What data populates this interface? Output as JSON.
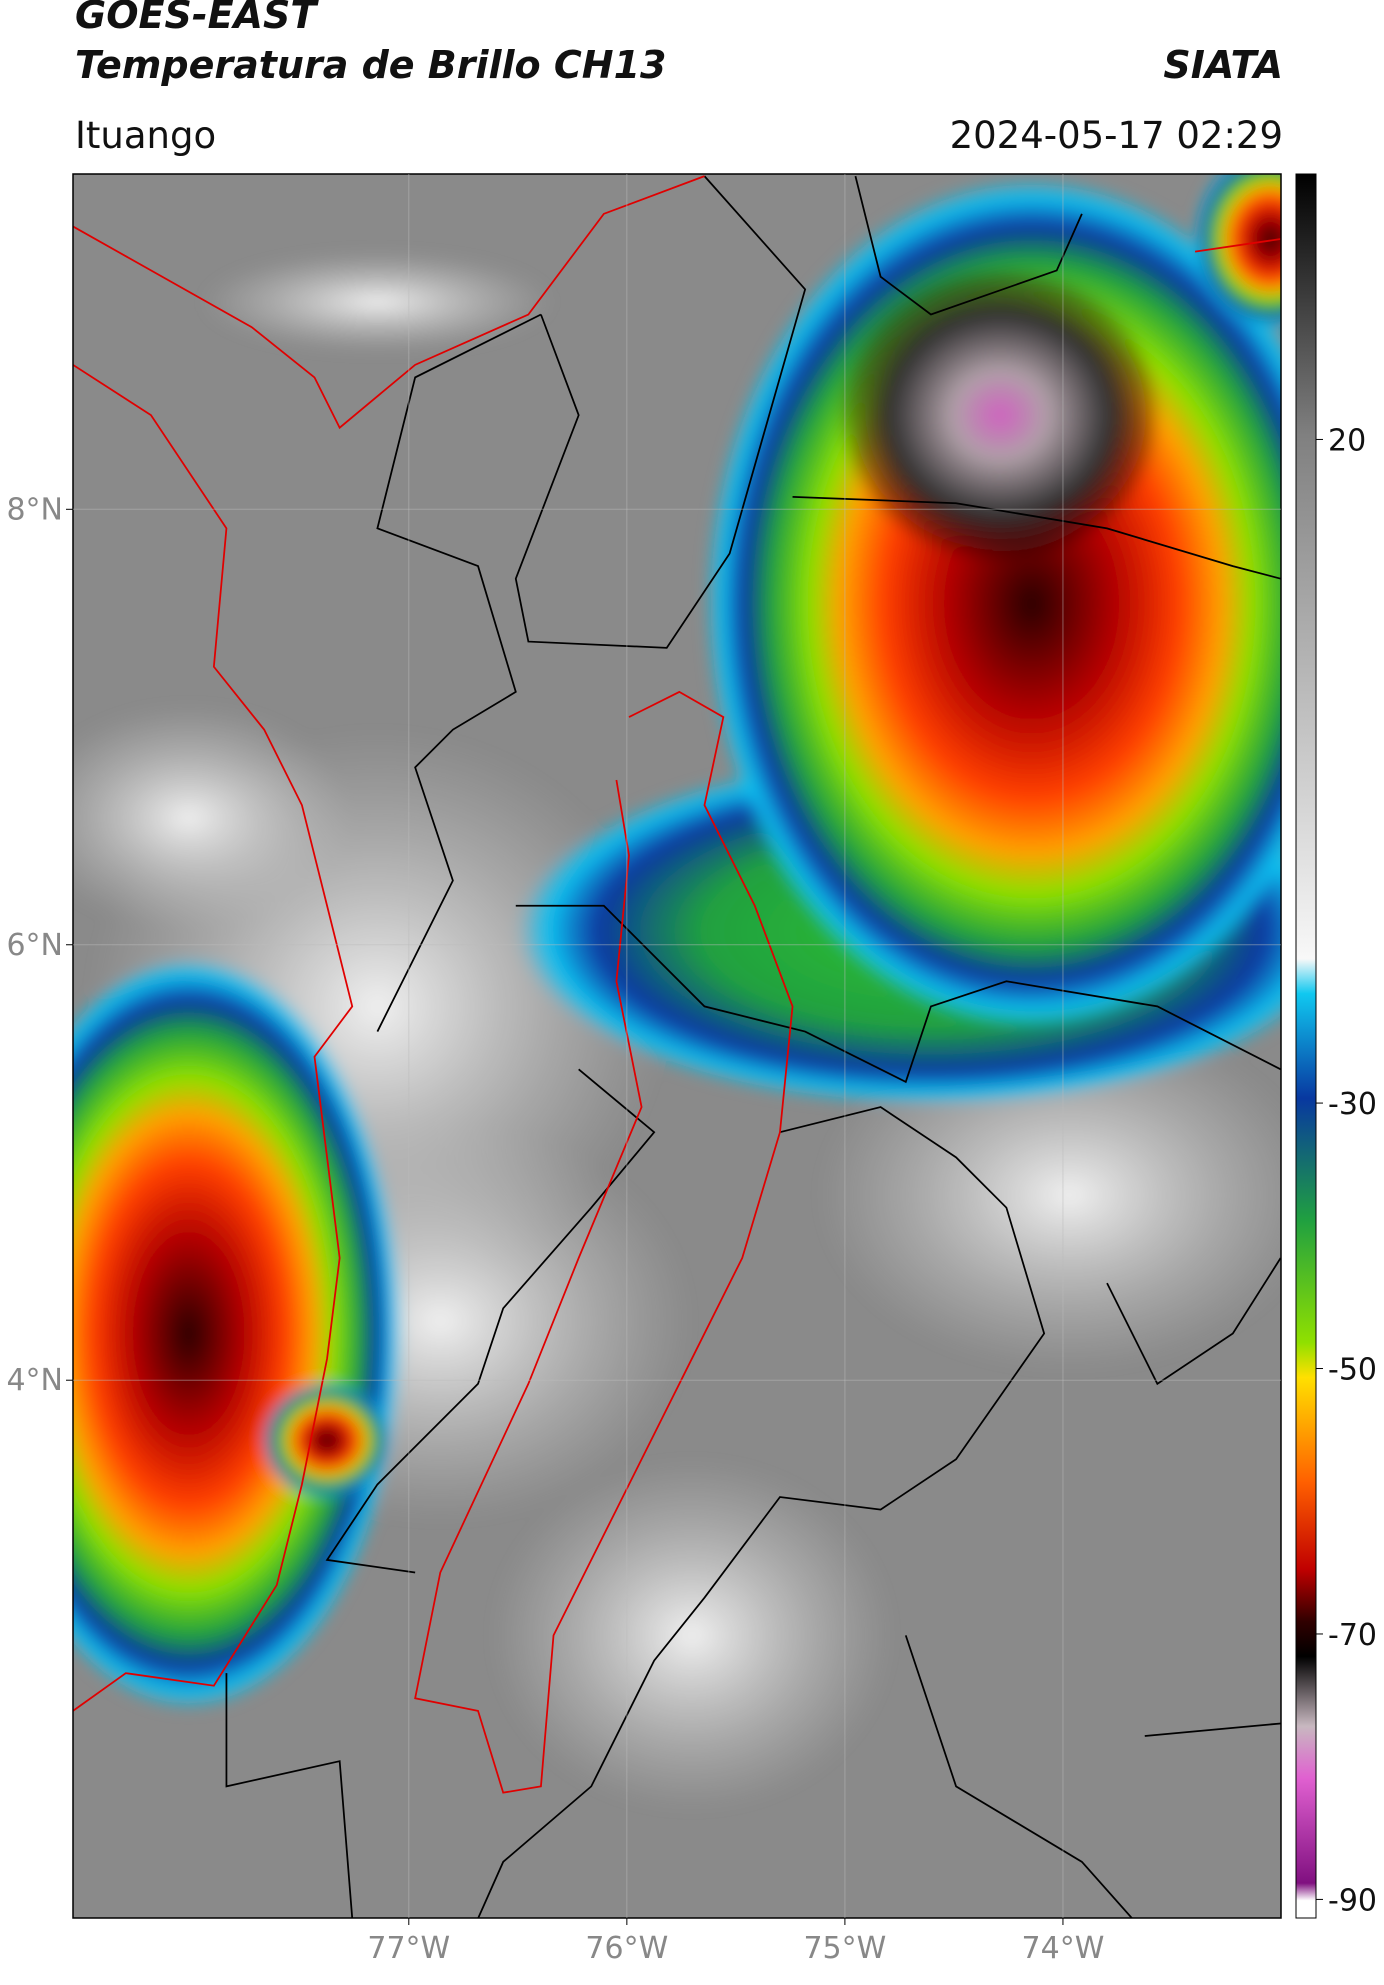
{
  "header": {
    "line1": "GOES-EAST",
    "line2": "Temperatura de Brillo CH13",
    "agency": "SIATA",
    "location": "Ituango",
    "datetime": "2024-05-17 02:29"
  },
  "map": {
    "xlim": [
      -78.54,
      -73.0
    ],
    "ylim": [
      1.53,
      9.54
    ],
    "xticks": [
      {
        "value": -77,
        "label": "77°W"
      },
      {
        "value": -76,
        "label": "76°W"
      },
      {
        "value": -75,
        "label": "75°W"
      },
      {
        "value": -74,
        "label": "74°W"
      }
    ],
    "yticks": [
      {
        "value": 8,
        "label": "8°N"
      },
      {
        "value": 6,
        "label": "6°N"
      },
      {
        "value": 4,
        "label": "4°N"
      }
    ],
    "grid": true
  },
  "colorbar": {
    "lim": [
      -91.4,
      40
    ],
    "ticks": [
      20,
      -30,
      -50,
      -70,
      -90
    ]
  }
}
